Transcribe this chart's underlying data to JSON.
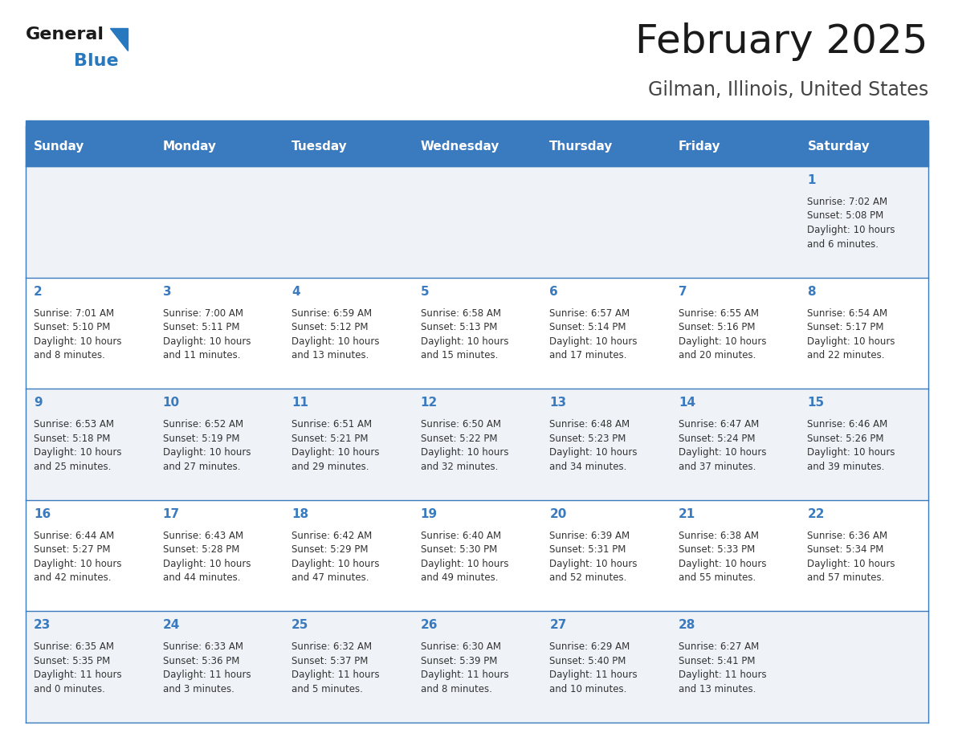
{
  "title": "February 2025",
  "subtitle": "Gilman, Illinois, United States",
  "days_of_week": [
    "Sunday",
    "Monday",
    "Tuesday",
    "Wednesday",
    "Thursday",
    "Friday",
    "Saturday"
  ],
  "header_bg_color": "#3a7abf",
  "header_text_color": "#ffffff",
  "row_bg_color_light": "#ffffff",
  "row_bg_color_alt": "#eff3f8",
  "cell_border_color": "#3a7abf",
  "day_number_color": "#3a7abf",
  "text_color": "#333333",
  "title_color": "#1a1a1a",
  "subtitle_color": "#444444",
  "logo_general_color": "#1a1a1a",
  "logo_blue_color": "#2878c0",
  "calendar_data": [
    [
      null,
      null,
      null,
      null,
      null,
      null,
      {
        "day": 1,
        "sunrise": "7:02 AM",
        "sunset": "5:08 PM",
        "daylight_l1": "Daylight: 10 hours",
        "daylight_l2": "and 6 minutes."
      }
    ],
    [
      {
        "day": 2,
        "sunrise": "7:01 AM",
        "sunset": "5:10 PM",
        "daylight_l1": "Daylight: 10 hours",
        "daylight_l2": "and 8 minutes."
      },
      {
        "day": 3,
        "sunrise": "7:00 AM",
        "sunset": "5:11 PM",
        "daylight_l1": "Daylight: 10 hours",
        "daylight_l2": "and 11 minutes."
      },
      {
        "day": 4,
        "sunrise": "6:59 AM",
        "sunset": "5:12 PM",
        "daylight_l1": "Daylight: 10 hours",
        "daylight_l2": "and 13 minutes."
      },
      {
        "day": 5,
        "sunrise": "6:58 AM",
        "sunset": "5:13 PM",
        "daylight_l1": "Daylight: 10 hours",
        "daylight_l2": "and 15 minutes."
      },
      {
        "day": 6,
        "sunrise": "6:57 AM",
        "sunset": "5:14 PM",
        "daylight_l1": "Daylight: 10 hours",
        "daylight_l2": "and 17 minutes."
      },
      {
        "day": 7,
        "sunrise": "6:55 AM",
        "sunset": "5:16 PM",
        "daylight_l1": "Daylight: 10 hours",
        "daylight_l2": "and 20 minutes."
      },
      {
        "day": 8,
        "sunrise": "6:54 AM",
        "sunset": "5:17 PM",
        "daylight_l1": "Daylight: 10 hours",
        "daylight_l2": "and 22 minutes."
      }
    ],
    [
      {
        "day": 9,
        "sunrise": "6:53 AM",
        "sunset": "5:18 PM",
        "daylight_l1": "Daylight: 10 hours",
        "daylight_l2": "and 25 minutes."
      },
      {
        "day": 10,
        "sunrise": "6:52 AM",
        "sunset": "5:19 PM",
        "daylight_l1": "Daylight: 10 hours",
        "daylight_l2": "and 27 minutes."
      },
      {
        "day": 11,
        "sunrise": "6:51 AM",
        "sunset": "5:21 PM",
        "daylight_l1": "Daylight: 10 hours",
        "daylight_l2": "and 29 minutes."
      },
      {
        "day": 12,
        "sunrise": "6:50 AM",
        "sunset": "5:22 PM",
        "daylight_l1": "Daylight: 10 hours",
        "daylight_l2": "and 32 minutes."
      },
      {
        "day": 13,
        "sunrise": "6:48 AM",
        "sunset": "5:23 PM",
        "daylight_l1": "Daylight: 10 hours",
        "daylight_l2": "and 34 minutes."
      },
      {
        "day": 14,
        "sunrise": "6:47 AM",
        "sunset": "5:24 PM",
        "daylight_l1": "Daylight: 10 hours",
        "daylight_l2": "and 37 minutes."
      },
      {
        "day": 15,
        "sunrise": "6:46 AM",
        "sunset": "5:26 PM",
        "daylight_l1": "Daylight: 10 hours",
        "daylight_l2": "and 39 minutes."
      }
    ],
    [
      {
        "day": 16,
        "sunrise": "6:44 AM",
        "sunset": "5:27 PM",
        "daylight_l1": "Daylight: 10 hours",
        "daylight_l2": "and 42 minutes."
      },
      {
        "day": 17,
        "sunrise": "6:43 AM",
        "sunset": "5:28 PM",
        "daylight_l1": "Daylight: 10 hours",
        "daylight_l2": "and 44 minutes."
      },
      {
        "day": 18,
        "sunrise": "6:42 AM",
        "sunset": "5:29 PM",
        "daylight_l1": "Daylight: 10 hours",
        "daylight_l2": "and 47 minutes."
      },
      {
        "day": 19,
        "sunrise": "6:40 AM",
        "sunset": "5:30 PM",
        "daylight_l1": "Daylight: 10 hours",
        "daylight_l2": "and 49 minutes."
      },
      {
        "day": 20,
        "sunrise": "6:39 AM",
        "sunset": "5:31 PM",
        "daylight_l1": "Daylight: 10 hours",
        "daylight_l2": "and 52 minutes."
      },
      {
        "day": 21,
        "sunrise": "6:38 AM",
        "sunset": "5:33 PM",
        "daylight_l1": "Daylight: 10 hours",
        "daylight_l2": "and 55 minutes."
      },
      {
        "day": 22,
        "sunrise": "6:36 AM",
        "sunset": "5:34 PM",
        "daylight_l1": "Daylight: 10 hours",
        "daylight_l2": "and 57 minutes."
      }
    ],
    [
      {
        "day": 23,
        "sunrise": "6:35 AM",
        "sunset": "5:35 PM",
        "daylight_l1": "Daylight: 11 hours",
        "daylight_l2": "and 0 minutes."
      },
      {
        "day": 24,
        "sunrise": "6:33 AM",
        "sunset": "5:36 PM",
        "daylight_l1": "Daylight: 11 hours",
        "daylight_l2": "and 3 minutes."
      },
      {
        "day": 25,
        "sunrise": "6:32 AM",
        "sunset": "5:37 PM",
        "daylight_l1": "Daylight: 11 hours",
        "daylight_l2": "and 5 minutes."
      },
      {
        "day": 26,
        "sunrise": "6:30 AM",
        "sunset": "5:39 PM",
        "daylight_l1": "Daylight: 11 hours",
        "daylight_l2": "and 8 minutes."
      },
      {
        "day": 27,
        "sunrise": "6:29 AM",
        "sunset": "5:40 PM",
        "daylight_l1": "Daylight: 11 hours",
        "daylight_l2": "and 10 minutes."
      },
      {
        "day": 28,
        "sunrise": "6:27 AM",
        "sunset": "5:41 PM",
        "daylight_l1": "Daylight: 11 hours",
        "daylight_l2": "and 13 minutes."
      },
      null
    ]
  ]
}
